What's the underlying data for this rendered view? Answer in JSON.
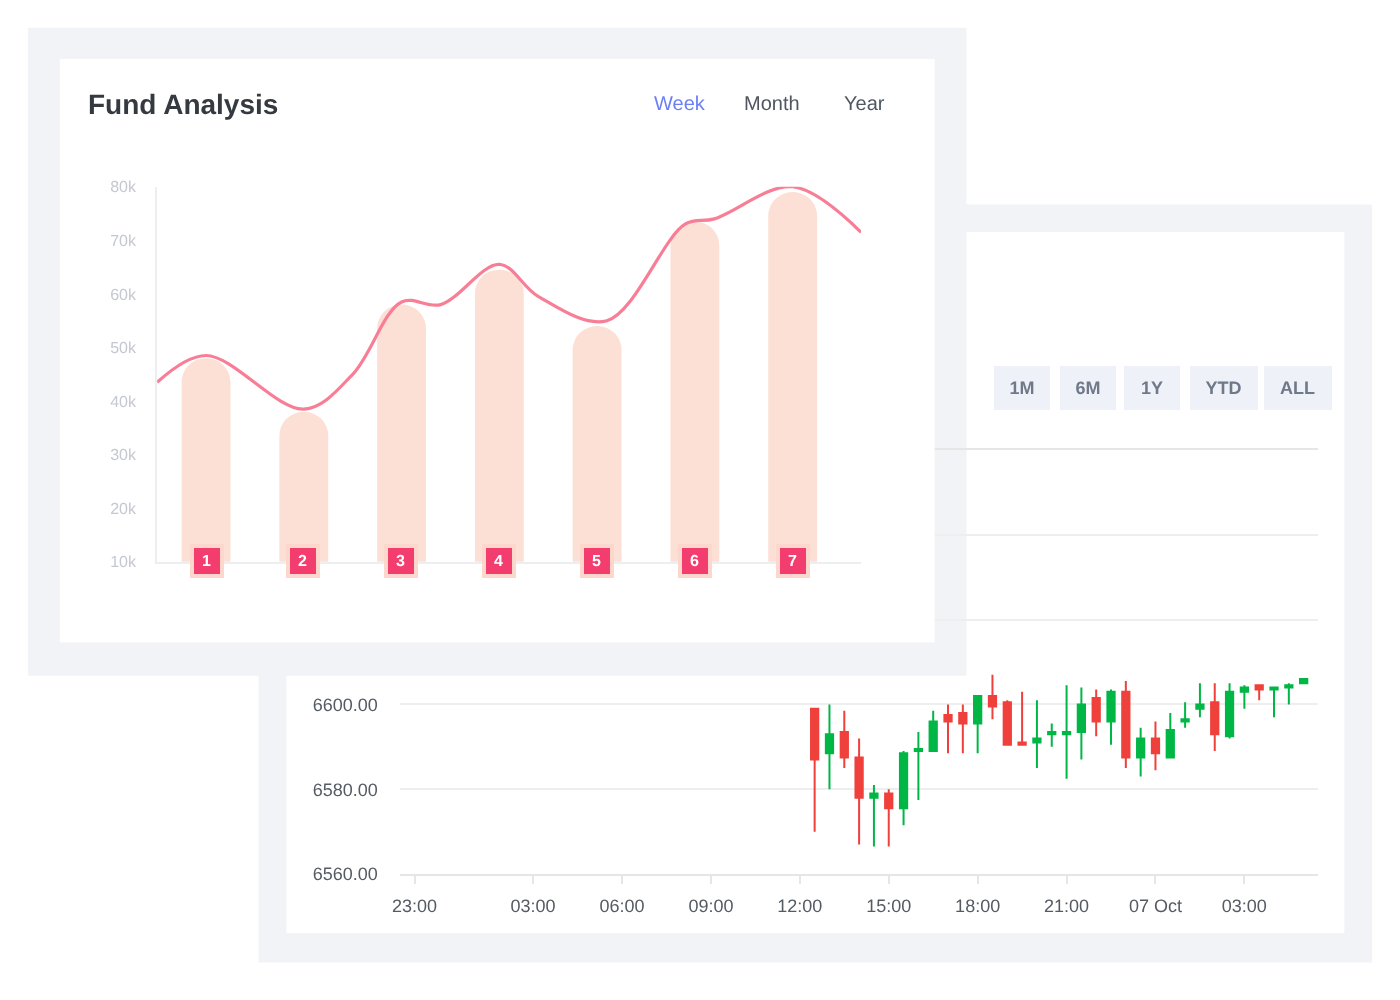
{
  "chart_data": [
    {
      "type": "bar",
      "title": "Fund Analysis",
      "x": [
        1,
        2,
        3,
        4,
        5,
        6,
        7
      ],
      "xlim": [
        0.5,
        7.7
      ],
      "xticks": [
        1,
        2,
        3,
        4,
        5,
        6,
        7
      ],
      "ylim": [
        10000,
        80000
      ],
      "yticks": [
        {
          "value": 10000,
          "label": "10k"
        },
        {
          "value": 20000,
          "label": "20k"
        },
        {
          "value": 30000,
          "label": "30k"
        },
        {
          "value": 40000,
          "label": "40k"
        },
        {
          "value": 50000,
          "label": "50k"
        },
        {
          "value": 60000,
          "label": "60k"
        },
        {
          "value": 70000,
          "label": "70k"
        },
        {
          "value": 80000,
          "label": "80k"
        }
      ],
      "series": [
        {
          "type": "bar",
          "color": "#fde0d5",
          "values": [
            48000,
            38000,
            58000,
            64500,
            54000,
            73500,
            79000
          ]
        },
        {
          "type": "line",
          "color": "#f77e95",
          "x": [
            0.5,
            1,
            2,
            2.5,
            3,
            3.4,
            4,
            4.4,
            5.1,
            5.9,
            6.2,
            7,
            7.7
          ],
          "values": [
            43500,
            48500,
            38500,
            45000,
            58500,
            58000,
            65500,
            59500,
            55000,
            73000,
            74000,
            80000,
            71500
          ]
        }
      ],
      "annotations": [
        "Week",
        "Month",
        "Year"
      ]
    },
    {
      "type": "candlestick",
      "x": [
        "--10-06T12:30",
        "--10-06T13:00",
        "--10-06T13:30",
        "--10-06T14:00",
        "--10-06T14:30",
        "--10-06T15:00",
        "--10-06T15:30",
        "--10-06T16:00",
        "--10-06T16:30",
        "--10-06T17:00",
        "--10-06T17:30",
        "--10-06T18:00",
        "--10-06T18:30",
        "--10-06T19:00",
        "--10-06T19:30",
        "--10-06T20:00",
        "--10-06T20:30",
        "--10-06T21:00",
        "--10-06T21:30",
        "--10-06T22:00",
        "--10-06T22:30",
        "--10-06T23:00",
        "--10-06T23:30",
        "--10-07T00:00",
        "--10-07T00:30",
        "--10-07T01:00",
        "--10-07T01:30",
        "--10-07T02:00",
        "--10-07T02:30",
        "--10-07T03:00",
        "--10-07T03:30",
        "--10-07T04:00",
        "--10-07T04:30",
        "--10-07T05:00"
      ],
      "ohlc": [
        [
          6599,
          6599,
          6570,
          6587
        ],
        [
          6588.5,
          6600,
          6580,
          6593
        ],
        [
          6593.5,
          6598.5,
          6585,
          6587.5
        ],
        [
          6587.5,
          6592,
          6567,
          6578
        ],
        [
          6578,
          6581,
          6566.5,
          6579
        ],
        [
          6579,
          6580,
          6566.5,
          6575.5
        ],
        [
          6575.5,
          6589,
          6571.5,
          6588.5
        ],
        [
          6589,
          6593.5,
          6577.5,
          6589.5
        ],
        [
          6589,
          6598.5,
          6589,
          6596
        ],
        [
          6597.5,
          6600,
          6588.5,
          6596
        ],
        [
          6598,
          6600,
          6588.5,
          6595.5
        ],
        [
          6595.5,
          6602,
          6588.5,
          6602
        ],
        [
          6602,
          6607,
          6596.5,
          6599.5
        ],
        [
          6600.5,
          6601,
          6590.5,
          6590.5
        ],
        [
          6591,
          6603,
          6590.5,
          6590.5
        ],
        [
          6591,
          6601,
          6585,
          6592
        ],
        [
          6593,
          6595.5,
          6590,
          6593.5
        ],
        [
          6593,
          6604.5,
          6582.5,
          6593.5
        ],
        [
          6593.5,
          6604,
          6587,
          6600
        ],
        [
          6601.5,
          6603.5,
          6592.5,
          6596
        ],
        [
          6596,
          6603.5,
          6590.5,
          6603
        ],
        [
          6603,
          6605.5,
          6585,
          6587.5
        ],
        [
          6587.5,
          6594.5,
          6583,
          6592
        ],
        [
          6592,
          6596,
          6584.5,
          6588.5
        ],
        [
          6587.5,
          6598,
          6587.5,
          6594
        ],
        [
          6596,
          6600.5,
          6594.5,
          6596.5
        ],
        [
          6599,
          6605,
          6597,
          6600
        ],
        [
          6600.5,
          6605,
          6589,
          6593
        ],
        [
          6592.5,
          6605,
          6592,
          6603
        ],
        [
          6603,
          6604.5,
          6599,
          6604
        ],
        [
          6604.5,
          6604.5,
          6601,
          6603.5
        ],
        [
          6603.5,
          6604,
          6597,
          6604
        ],
        [
          6604,
          6605,
          6600,
          6604.5
        ],
        [
          6605,
          6606,
          6605,
          6606
        ]
      ],
      "xlim": [
        "--10-05T22:30",
        "--10-07T05:30"
      ],
      "xticks": [
        {
          "value": "--10-05T23:00",
          "label": "23:00"
        },
        {
          "value": "--10-06T03:00",
          "label": "03:00"
        },
        {
          "value": "--10-06T06:00",
          "label": "06:00"
        },
        {
          "value": "--10-06T09:00",
          "label": "09:00"
        },
        {
          "value": "--10-06T12:00",
          "label": "12:00"
        },
        {
          "value": "--10-06T15:00",
          "label": "15:00"
        },
        {
          "value": "--10-06T18:00",
          "label": "18:00"
        },
        {
          "value": "--10-06T21:00",
          "label": "21:00"
        },
        {
          "value": "--10-07T00:00",
          "label": "07 Oct"
        },
        {
          "value": "--10-07T03:00",
          "label": "03:00"
        }
      ],
      "ylim": [
        6560,
        6660
      ],
      "yticks": [
        {
          "value": 6560,
          "label": "6560.00"
        },
        {
          "value": 6580,
          "label": "6580.00"
        },
        {
          "value": 6600,
          "label": "6600.00"
        },
        {
          "value": 6620,
          "label": null
        },
        {
          "value": 6640,
          "label": null
        },
        {
          "value": 6660,
          "label": null
        }
      ],
      "grid": "y",
      "annotations": [
        "1M",
        "6M",
        "1Y",
        "YTD",
        "ALL"
      ]
    }
  ]
}
